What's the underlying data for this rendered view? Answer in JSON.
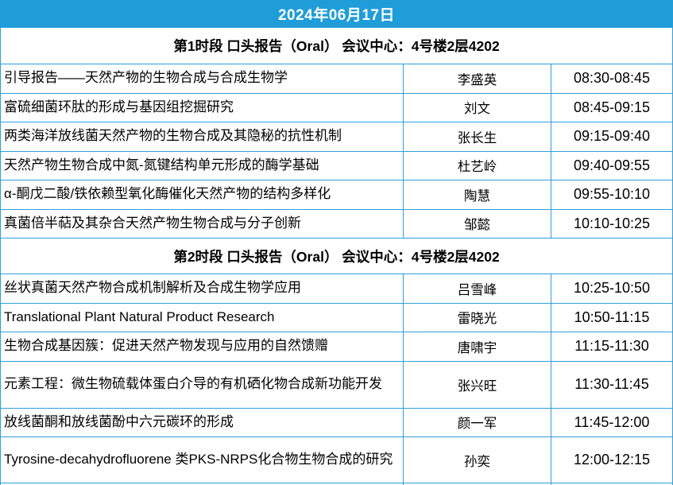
{
  "date_header": "2024年06月17日",
  "colors": {
    "header_bar_blue": "#1e9dd8",
    "table_border_blue": "#2e9fda",
    "header_text": "#ffffff",
    "body_text": "#000000"
  },
  "sessions": [
    {
      "header": "第1时段 口头报告（Oral） 会议中心：4号楼2层4202",
      "talks": [
        {
          "title": "引导报告——天然产物的生物合成与合成生物学",
          "speaker": "李盛英",
          "time": "08:30-08:45"
        },
        {
          "title": "富硫细菌环肽的形成与基因组挖掘研究",
          "speaker": "刘文",
          "time": "08:45-09:15"
        },
        {
          "title": "两类海洋放线菌天然产物的生物合成及其隐秘的抗性机制",
          "speaker": "张长生",
          "time": "09:15-09:40"
        },
        {
          "title": "天然产物生物合成中氮-氮键结构单元形成的酶学基础",
          "speaker": "杜艺岭",
          "time": "09:40-09:55"
        },
        {
          "title": "α-酮戊二酸/铁依赖型氧化酶催化天然产物的结构多样化",
          "speaker": "陶慧",
          "time": "09:55-10:10"
        },
        {
          "title": "真菌倍半萜及其杂合天然产物生物合成与分子创新",
          "speaker": "邹懿",
          "time": "10:10-10:25"
        }
      ]
    },
    {
      "header": "第2时段 口头报告（Oral） 会议中心：4号楼2层4202",
      "talks": [
        {
          "title": "丝状真菌天然产物合成机制解析及合成生物学应用",
          "speaker": "吕雪峰",
          "time": "10:25-10:50"
        },
        {
          "title": "Translational Plant Natural Product Research",
          "speaker": "雷晓光",
          "time": "10:50-11:15"
        },
        {
          "title": "生物合成基因簇：促进天然产物发现与应用的自然馈赠",
          "speaker": "唐啸宇",
          "time": "11:15-11:30"
        },
        {
          "title": "元素工程：微生物硫载体蛋白介导的有机硒化物合成新功能开发",
          "speaker": "张兴旺",
          "time": "11:30-11:45"
        },
        {
          "title": "放线菌酮和放线菌酚中六元碳环的形成",
          "speaker": "颜一军",
          "time": "11:45-12:00"
        },
        {
          "title": "Tyrosine-decahydrofluorene 类PKS-NRPS化合物生物合成的研究",
          "speaker": "孙奕",
          "time": "12:00-12:15"
        }
      ]
    }
  ]
}
